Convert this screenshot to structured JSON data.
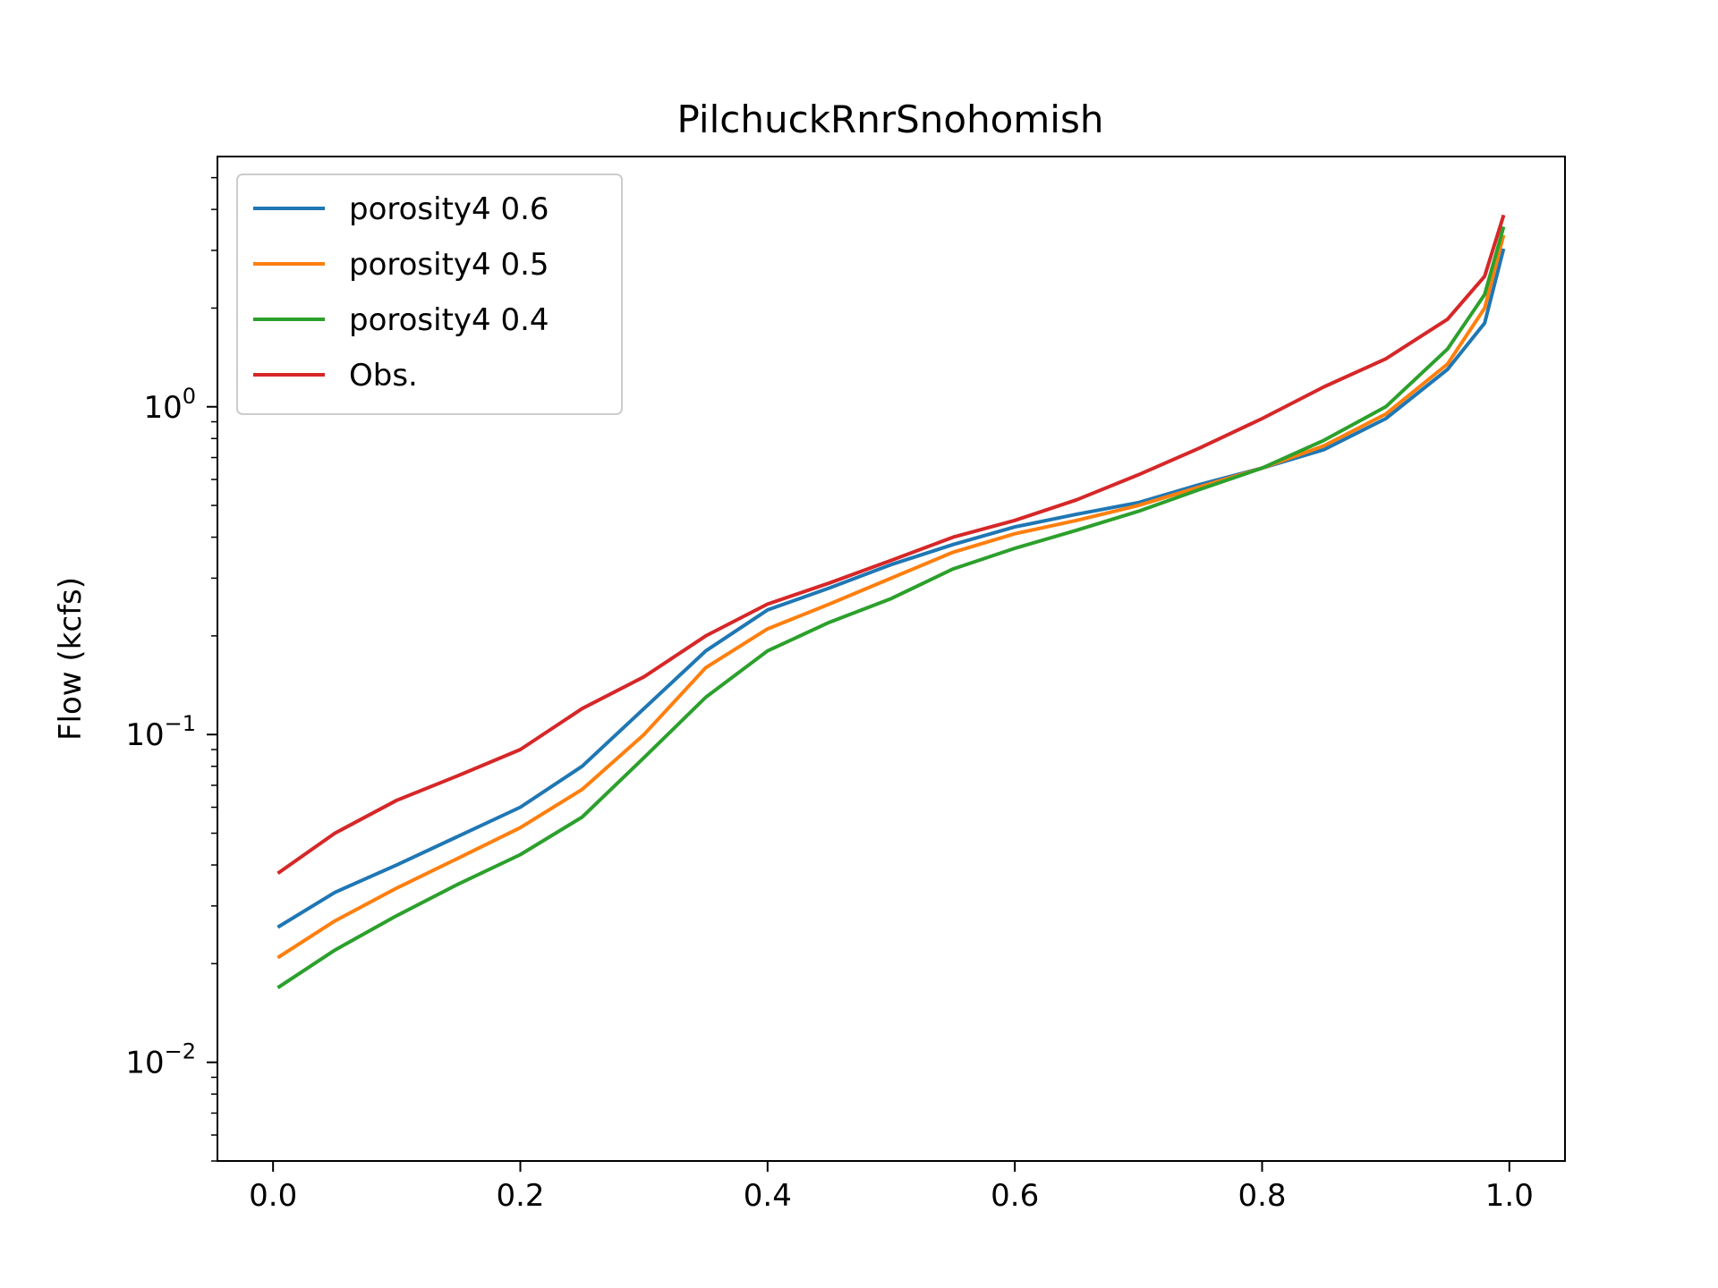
{
  "chart_data": {
    "type": "line",
    "title": "PilchuckRnrSnohomish",
    "xlabel": "",
    "ylabel": "Flow (kcfs)",
    "yscale": "log",
    "xlim": [
      -0.045,
      1.045
    ],
    "ylim": [
      0.005,
      5.8
    ],
    "xticks": [
      {
        "value": 0.0,
        "label": "0.0"
      },
      {
        "value": 0.2,
        "label": "0.2"
      },
      {
        "value": 0.4,
        "label": "0.4"
      },
      {
        "value": 0.6,
        "label": "0.6"
      },
      {
        "value": 0.8,
        "label": "0.8"
      },
      {
        "value": 1.0,
        "label": "1.0"
      }
    ],
    "yticks": [
      {
        "value": 0.01,
        "base": "10",
        "exp": "−2"
      },
      {
        "value": 0.1,
        "base": "10",
        "exp": "−1"
      },
      {
        "value": 1.0,
        "base": "10",
        "exp": "0"
      }
    ],
    "grid": false,
    "legend": {
      "placement": "top-left"
    },
    "series": [
      {
        "name": "porosity4 0.6",
        "color": "#1f77b4",
        "x": [
          0.005,
          0.05,
          0.1,
          0.15,
          0.2,
          0.25,
          0.3,
          0.35,
          0.4,
          0.45,
          0.5,
          0.55,
          0.6,
          0.65,
          0.7,
          0.75,
          0.8,
          0.85,
          0.9,
          0.95,
          0.98,
          0.995
        ],
        "y": [
          0.026,
          0.033,
          0.04,
          0.049,
          0.06,
          0.08,
          0.12,
          0.18,
          0.24,
          0.28,
          0.33,
          0.38,
          0.43,
          0.47,
          0.51,
          0.58,
          0.65,
          0.74,
          0.92,
          1.3,
          1.8,
          3.0
        ]
      },
      {
        "name": "porosity4 0.5",
        "color": "#ff7f0e",
        "x": [
          0.005,
          0.05,
          0.1,
          0.15,
          0.2,
          0.25,
          0.3,
          0.35,
          0.4,
          0.45,
          0.5,
          0.55,
          0.6,
          0.65,
          0.7,
          0.75,
          0.8,
          0.85,
          0.9,
          0.95,
          0.98,
          0.995
        ],
        "y": [
          0.021,
          0.027,
          0.034,
          0.042,
          0.052,
          0.068,
          0.1,
          0.16,
          0.21,
          0.25,
          0.3,
          0.36,
          0.41,
          0.45,
          0.5,
          0.57,
          0.65,
          0.76,
          0.95,
          1.35,
          2.0,
          3.3
        ]
      },
      {
        "name": "porosity4 0.4",
        "color": "#2ca02c",
        "x": [
          0.005,
          0.05,
          0.1,
          0.15,
          0.2,
          0.25,
          0.3,
          0.35,
          0.4,
          0.45,
          0.5,
          0.55,
          0.6,
          0.65,
          0.7,
          0.75,
          0.8,
          0.85,
          0.9,
          0.95,
          0.98,
          0.995
        ],
        "y": [
          0.017,
          0.022,
          0.028,
          0.035,
          0.043,
          0.056,
          0.085,
          0.13,
          0.18,
          0.22,
          0.26,
          0.32,
          0.37,
          0.42,
          0.48,
          0.56,
          0.65,
          0.79,
          1.0,
          1.5,
          2.2,
          3.5
        ]
      },
      {
        "name": "Obs.",
        "color": "#d62728",
        "x": [
          0.005,
          0.05,
          0.1,
          0.15,
          0.2,
          0.25,
          0.3,
          0.35,
          0.4,
          0.45,
          0.5,
          0.55,
          0.6,
          0.65,
          0.7,
          0.75,
          0.8,
          0.85,
          0.9,
          0.95,
          0.98,
          0.995
        ],
        "y": [
          0.038,
          0.05,
          0.063,
          0.075,
          0.09,
          0.12,
          0.15,
          0.2,
          0.25,
          0.29,
          0.34,
          0.4,
          0.45,
          0.52,
          0.62,
          0.75,
          0.92,
          1.15,
          1.4,
          1.85,
          2.5,
          3.8
        ]
      }
    ]
  }
}
